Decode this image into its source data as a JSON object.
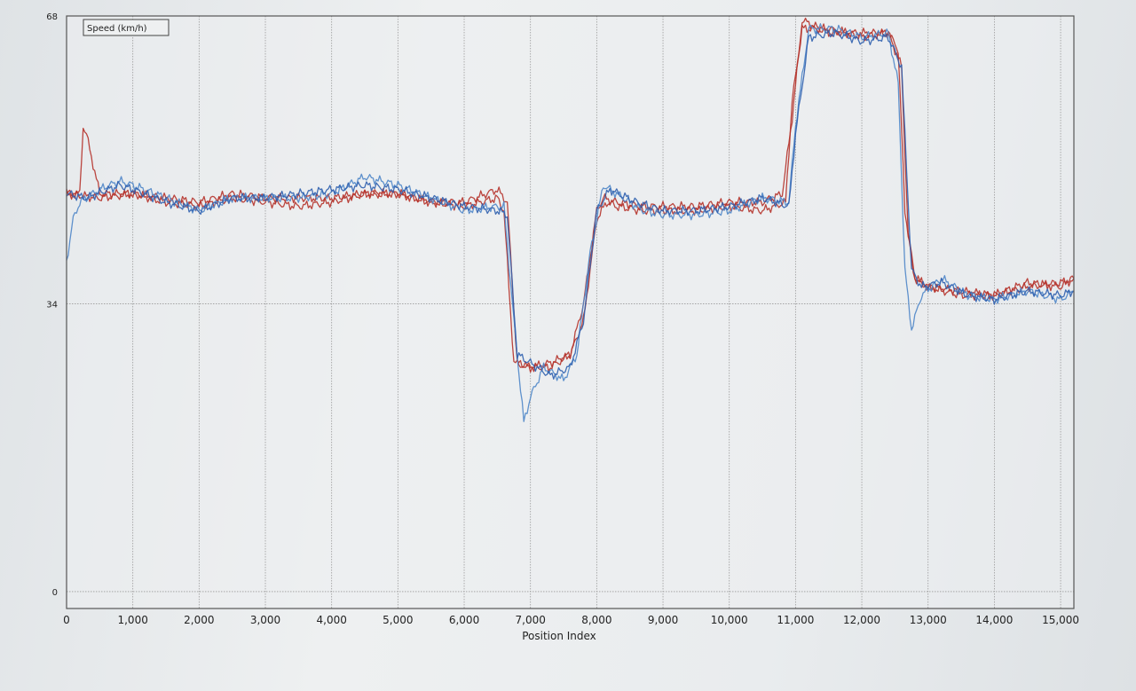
{
  "chart_data": {
    "type": "line",
    "legend_label": "Speed (km/h)",
    "legend_position": "top-left",
    "xlabel": "Position Index",
    "ylabel": "",
    "xlim": [
      0,
      15200
    ],
    "ylim": [
      -2,
      68
    ],
    "x_ticks": [
      0,
      1000,
      2000,
      3000,
      4000,
      5000,
      6000,
      7000,
      8000,
      9000,
      10000,
      11000,
      12000,
      13000,
      14000,
      15000
    ],
    "x_tick_labels": [
      "0",
      "1,000",
      "2,000",
      "3,000",
      "4,000",
      "5,000",
      "6,000",
      "7,000",
      "8,000",
      "9,000",
      "10,000",
      "11,000",
      "12,000",
      "13,000",
      "14,000",
      "15,000"
    ],
    "y_ticks": [
      0,
      34,
      68
    ],
    "y_tick_labels": [
      "0",
      "34",
      "68"
    ],
    "grid": true,
    "colors": {
      "red": "#b5322a",
      "blue_dark": "#2f5fae",
      "blue_light": "#4f86c8",
      "grid": "#9a9a9a"
    },
    "series": [
      {
        "color": "red",
        "x": [
          0,
          200,
          250,
          300,
          500,
          1000,
          1500,
          2000,
          2500,
          3000,
          3500,
          4000,
          4500,
          5000,
          5500,
          6000,
          6500,
          6650,
          6800,
          7000,
          7300,
          7600,
          7800,
          8000,
          8100,
          8300,
          8700,
          9000,
          9500,
          10000,
          10500,
          10800,
          10950,
          11100,
          11500,
          12000,
          12400,
          12550,
          12650,
          12800,
          13000,
          13500,
          14000,
          14500,
          15000,
          15200
        ],
        "y": [
          47,
          47,
          55,
          54,
          47,
          47,
          46.5,
          46,
          47,
          46.5,
          46.5,
          46.5,
          47,
          47,
          46,
          46,
          47.5,
          46,
          27,
          26.5,
          27,
          28,
          34,
          45,
          46.5,
          46,
          45.5,
          45.5,
          45.5,
          46,
          46,
          47,
          56,
          67.5,
          66,
          66,
          66,
          64,
          45,
          37,
          36,
          35,
          35,
          36.5,
          36,
          37
        ]
      },
      {
        "color": "red",
        "x": [
          0,
          500,
          1000,
          1500,
          2000,
          2500,
          3000,
          3500,
          4000,
          4500,
          5000,
          5500,
          6000,
          6500,
          6600,
          6750,
          7000,
          7300,
          7600,
          7800,
          8000,
          8150,
          8300,
          8700,
          9000,
          9500,
          10000,
          10500,
          10850,
          10950,
          11100,
          11500,
          12000,
          12400,
          12600,
          12700,
          12800,
          13000,
          13500,
          14000,
          14500,
          15000,
          15200
        ],
        "y": [
          47,
          46.5,
          47,
          46,
          45.5,
          46.5,
          46,
          45.5,
          46,
          47,
          47,
          46,
          45.5,
          46.5,
          45,
          27,
          26.5,
          26.5,
          28,
          32,
          44,
          46,
          45.5,
          45,
          45,
          45,
          45.5,
          45,
          46,
          58,
          66.5,
          66.5,
          65.5,
          66,
          62,
          42,
          37,
          36,
          35.5,
          35,
          36,
          36.5,
          37
        ]
      },
      {
        "color": "blue_light",
        "x": [
          0,
          100,
          200,
          500,
          800,
          1000,
          1500,
          2000,
          2500,
          3000,
          3500,
          4000,
          4500,
          5000,
          5500,
          6000,
          6500,
          6600,
          6750,
          6900,
          7000,
          7200,
          7500,
          7700,
          7900,
          8100,
          8300,
          8700,
          9000,
          9500,
          10000,
          10500,
          10900,
          11000,
          11200,
          11600,
          12000,
          12400,
          12550,
          12650,
          12750,
          12900,
          13200,
          13600,
          14000,
          14500,
          15000,
          15200
        ],
        "y": [
          39,
          44,
          46,
          47.5,
          48.5,
          48,
          46.5,
          45,
          46.5,
          46.5,
          46.5,
          47,
          49,
          48,
          46.5,
          45,
          45.5,
          45.5,
          32,
          20,
          23,
          26.5,
          25,
          28,
          40,
          48,
          47,
          45,
          44.5,
          44.5,
          45,
          46.5,
          46,
          55,
          66.5,
          66.5,
          65.5,
          66,
          60,
          38,
          31,
          35,
          37,
          35,
          34.5,
          35.5,
          34.5,
          35.5
        ]
      },
      {
        "color": "blue_dark",
        "x": [
          0,
          300,
          800,
          1000,
          1500,
          2000,
          2500,
          3000,
          3500,
          4000,
          4500,
          5000,
          5500,
          6000,
          6500,
          6650,
          6800,
          7000,
          7300,
          7600,
          7800,
          8000,
          8200,
          8600,
          9000,
          9500,
          10000,
          10500,
          10900,
          11000,
          11200,
          11600,
          12000,
          12400,
          12600,
          12750,
          12900,
          13200,
          13600,
          14000,
          14500,
          15000,
          15200
        ],
        "y": [
          47,
          46.5,
          48,
          47.5,
          46,
          45,
          46.5,
          46.5,
          47,
          47.5,
          48,
          47.5,
          46.5,
          45.5,
          45,
          44.5,
          28,
          27,
          25.5,
          26.5,
          32,
          45,
          47.5,
          46,
          45,
          45,
          45.5,
          46.5,
          45.5,
          54,
          65.5,
          66,
          65,
          65.5,
          62,
          38,
          36,
          36.5,
          35,
          34.5,
          35.5,
          35,
          35.5
        ]
      }
    ]
  }
}
